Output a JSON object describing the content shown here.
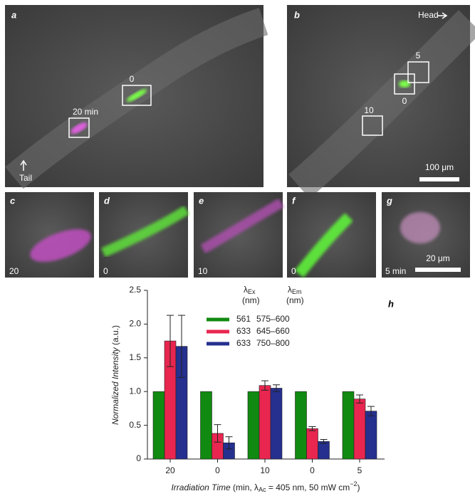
{
  "panels": {
    "a": {
      "label": "a",
      "box_labels": [
        "0",
        "20 min"
      ],
      "direction": "Tail"
    },
    "b": {
      "label": "b",
      "direction": "Head",
      "box_labels": [
        "5",
        "0",
        "10"
      ],
      "scale_bar": "100 μm"
    },
    "c": {
      "label": "c",
      "time": "20"
    },
    "d": {
      "label": "d",
      "time": "0"
    },
    "e": {
      "label": "e",
      "time": "10"
    },
    "f": {
      "label": "f",
      "time": "0"
    },
    "g": {
      "label": "g",
      "time": "5 min",
      "scale_bar": "20 μm"
    }
  },
  "chart_data": {
    "type": "grouped_bar",
    "panel_label": "h",
    "y_label": {
      "italic": "Normalized Intensity",
      "unit": " (a.u.)"
    },
    "x_label": {
      "italic": "Irradiation Time",
      "open": " (min, λ",
      "sub": "Ac",
      "mid": " = 405 nm, 50 mW cm",
      "sup": "−2",
      "close": ")"
    },
    "legend_headers": [
      {
        "symbol": "λ",
        "sub": "Ex",
        "unit": "(nm)"
      },
      {
        "symbol": "λ",
        "sub": "Em",
        "unit": "(nm)"
      }
    ],
    "categories": [
      "20",
      "0",
      "10",
      "0",
      "5"
    ],
    "series": [
      {
        "excitation": "561",
        "emission": "575–600",
        "color": "#118a11",
        "values": [
          1,
          1,
          1,
          1,
          1
        ]
      },
      {
        "excitation": "633",
        "emission": "645–660",
        "color": "#e8264f",
        "values": [
          1.75,
          0.38,
          1.09,
          0.45,
          0.89
        ],
        "errors": [
          0.38,
          0.13,
          0.07,
          0.03,
          0.06
        ]
      },
      {
        "excitation": "633",
        "emission": "750–800",
        "color": "#25308f",
        "values": [
          1.67,
          0.24,
          1.05,
          0.26,
          0.71
        ],
        "errors": [
          0.46,
          0.09,
          0.05,
          0.03,
          0.07
        ]
      }
    ],
    "ylim": [
      0,
      2.5
    ],
    "yticks": [
      0,
      0.5,
      {
        "value": 1,
        "label": "1.0"
      },
      {
        "value": 1.5,
        "label": "1.5"
      },
      {
        "value": 2,
        "label": "2.0"
      },
      {
        "value": 2.5,
        "label": "2.5"
      }
    ]
  }
}
